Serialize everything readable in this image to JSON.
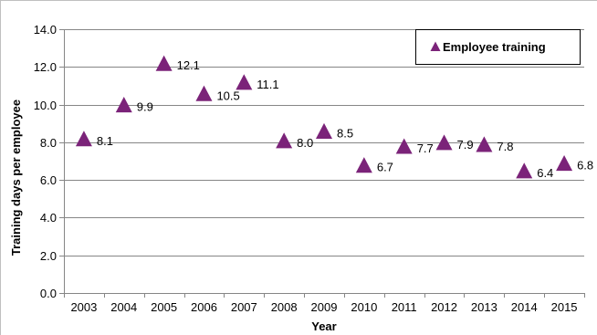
{
  "chart_data": {
    "type": "scatter",
    "title": "",
    "xlabel": "Year",
    "ylabel": "Training days per employee",
    "categories": [
      "2003",
      "2004",
      "2005",
      "2006",
      "2007",
      "2008",
      "2009",
      "2010",
      "2011",
      "2012",
      "2013",
      "2014",
      "2015"
    ],
    "series": [
      {
        "name": "Employee training",
        "values": [
          8.1,
          9.9,
          12.1,
          10.5,
          11.1,
          8.0,
          8.5,
          6.7,
          7.7,
          7.9,
          7.8,
          6.4,
          6.8
        ],
        "labels": [
          "8.1",
          "9.9",
          "12.1",
          "10.5",
          "11.1",
          "8.0",
          "8.5",
          "6.7",
          "7.7",
          "7.9",
          "7.8",
          "6.4",
          "6.8"
        ],
        "color": "#7B2379",
        "marker": "triangle"
      }
    ],
    "ylim": [
      0,
      14
    ],
    "yticks": [
      "0.0",
      "2.0",
      "4.0",
      "6.0",
      "8.0",
      "10.0",
      "12.0",
      "14.0"
    ],
    "grid": true,
    "legend": "top-right"
  }
}
